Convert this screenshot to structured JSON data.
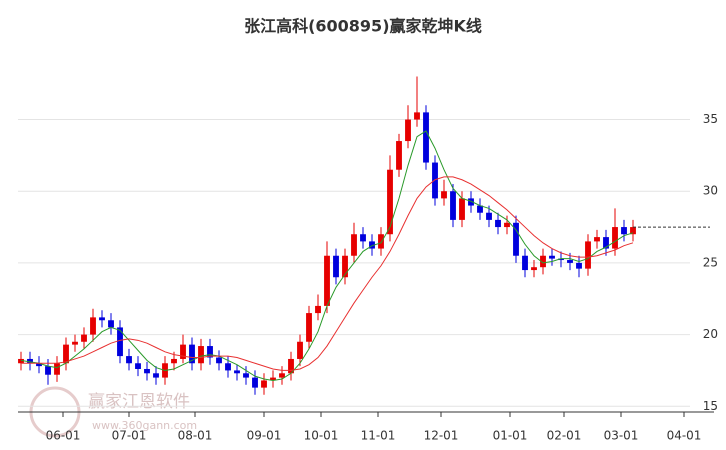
{
  "chart_data": {
    "type": "candlestick",
    "title": "张江高科(600895)赢家乾坤K线",
    "watermark": "赢家江恩软件",
    "watermark_url": "www.360gann.com",
    "x": [
      1,
      4,
      7,
      10,
      13,
      16,
      19,
      22,
      25,
      28,
      31,
      34,
      37,
      40,
      43,
      46,
      49,
      52,
      55,
      58,
      61,
      64,
      67,
      70,
      73,
      76,
      79,
      82,
      85,
      88,
      91,
      94,
      97,
      100,
      103,
      106,
      109,
      112,
      115,
      118,
      121,
      124,
      127,
      130,
      133,
      136,
      139,
      142,
      145,
      148,
      151,
      154,
      157,
      160,
      163,
      166,
      169,
      172,
      175,
      178,
      181,
      184,
      187,
      190,
      193,
      196,
      199,
      202,
      205
    ],
    "open": [
      18.0,
      18.3,
      18.0,
      17.8,
      17.2,
      18.0,
      19.3,
      19.5,
      20.0,
      21.2,
      21.0,
      20.5,
      18.5,
      18.0,
      17.6,
      17.3,
      17.0,
      18.0,
      18.3,
      19.3,
      18.0,
      19.2,
      18.4,
      18.0,
      17.5,
      17.3,
      17.0,
      16.3,
      16.8,
      17.0,
      17.3,
      18.3,
      19.5,
      21.5,
      22.0,
      25.5,
      24.0,
      25.5,
      27.0,
      26.5,
      26.0,
      27.0,
      31.5,
      33.5,
      35.0,
      35.5,
      32.0,
      29.5,
      30.0,
      28.0,
      29.5,
      29.0,
      28.5,
      28.0,
      27.5,
      27.8,
      25.5,
      24.5,
      24.7,
      25.5,
      25.3,
      25.2,
      25.0,
      24.6,
      26.5,
      26.8,
      26.0,
      27.5,
      27.0
    ],
    "high": [
      18.8,
      18.8,
      18.5,
      18.3,
      18.5,
      19.8,
      20.0,
      20.5,
      21.8,
      21.7,
      21.5,
      21.0,
      19.0,
      18.5,
      18.1,
      17.8,
      18.5,
      18.8,
      20.0,
      19.8,
      19.7,
      19.7,
      18.9,
      18.5,
      17.9,
      17.8,
      17.5,
      17.3,
      17.5,
      17.8,
      18.8,
      20.0,
      22.0,
      22.8,
      26.5,
      26.0,
      26.0,
      27.8,
      27.5,
      27.0,
      27.5,
      32.5,
      34.0,
      36.0,
      38.0,
      36.0,
      32.5,
      30.8,
      30.5,
      30.0,
      30.0,
      29.5,
      29.0,
      28.5,
      28.3,
      28.3,
      26.0,
      25.2,
      26.0,
      26.0,
      25.8,
      25.7,
      25.5,
      27.0,
      27.3,
      27.3,
      28.8,
      28.0,
      28.0
    ],
    "low": [
      17.5,
      17.5,
      17.3,
      16.5,
      16.7,
      17.5,
      18.8,
      19.0,
      19.5,
      20.5,
      20.0,
      18.0,
      17.5,
      17.1,
      16.8,
      16.5,
      16.5,
      17.5,
      18.0,
      17.5,
      17.5,
      17.9,
      17.5,
      17.0,
      16.8,
      16.5,
      15.8,
      15.8,
      16.3,
      16.5,
      16.8,
      17.8,
      19.0,
      21.0,
      21.5,
      23.5,
      23.5,
      25.0,
      26.0,
      25.5,
      25.5,
      26.5,
      31.0,
      33.0,
      34.5,
      31.5,
      29.0,
      29.0,
      27.5,
      27.5,
      28.5,
      28.0,
      27.5,
      27.0,
      27.0,
      25.0,
      24.0,
      24.0,
      24.2,
      24.8,
      24.7,
      24.5,
      24.0,
      24.1,
      26.0,
      25.5,
      25.5,
      26.5,
      26.5
    ],
    "close": [
      18.3,
      18.0,
      17.8,
      17.2,
      18.0,
      19.3,
      19.5,
      20.0,
      21.2,
      21.0,
      20.5,
      18.5,
      18.0,
      17.6,
      17.3,
      17.0,
      18.0,
      18.3,
      19.3,
      18.0,
      19.2,
      18.4,
      18.0,
      17.5,
      17.3,
      17.0,
      16.3,
      16.8,
      17.0,
      17.3,
      18.3,
      19.5,
      21.5,
      22.0,
      25.5,
      24.0,
      25.5,
      27.0,
      26.5,
      26.0,
      27.0,
      31.5,
      33.5,
      35.0,
      35.5,
      32.0,
      29.5,
      30.0,
      28.0,
      29.5,
      29.0,
      28.5,
      28.0,
      27.5,
      27.8,
      25.5,
      24.5,
      24.7,
      25.5,
      25.3,
      25.2,
      25.0,
      24.6,
      26.5,
      26.8,
      26.0,
      27.5,
      27.0,
      27.5
    ],
    "up_color": "#e60000",
    "down_color": "#0000dd",
    "lines": [
      {
        "color": "#2a9a2a",
        "values": [
          18.2,
          18.1,
          18.0,
          17.8,
          17.7,
          18.0,
          18.5,
          19.0,
          19.6,
          20.2,
          20.5,
          20.3,
          19.6,
          18.9,
          18.2,
          17.7,
          17.5,
          17.6,
          17.9,
          18.2,
          18.5,
          18.6,
          18.5,
          18.2,
          17.9,
          17.5,
          17.1,
          16.9,
          16.8,
          16.9,
          17.3,
          18.0,
          19.0,
          20.2,
          22.0,
          23.3,
          24.2,
          25.0,
          25.8,
          26.2,
          26.4,
          27.5,
          29.5,
          31.8,
          33.8,
          34.2,
          33.0,
          31.5,
          30.2,
          29.5,
          29.3,
          29.0,
          28.8,
          28.4,
          28.0,
          27.3,
          26.3,
          25.5,
          25.0,
          25.1,
          25.3,
          25.3,
          25.1,
          25.3,
          25.8,
          26.1,
          26.5,
          26.9,
          27.1
        ]
      },
      {
        "color": "#e83030",
        "values": [
          18.0,
          18.0,
          18.0,
          18.0,
          18.0,
          18.1,
          18.3,
          18.5,
          18.8,
          19.1,
          19.4,
          19.6,
          19.7,
          19.6,
          19.4,
          19.1,
          18.8,
          18.6,
          18.5,
          18.4,
          18.4,
          18.5,
          18.5,
          18.5,
          18.4,
          18.2,
          18.0,
          17.8,
          17.6,
          17.5,
          17.5,
          17.6,
          17.9,
          18.4,
          19.2,
          20.2,
          21.2,
          22.2,
          23.1,
          24.0,
          24.8,
          25.8,
          27.0,
          28.3,
          29.5,
          30.3,
          30.8,
          31.0,
          31.0,
          30.8,
          30.5,
          30.1,
          29.7,
          29.2,
          28.7,
          28.1,
          27.5,
          26.9,
          26.4,
          26.0,
          25.7,
          25.5,
          25.4,
          25.4,
          25.5,
          25.7,
          25.9,
          26.2,
          26.4
        ]
      }
    ],
    "xlim": [
      0,
      232
    ],
    "xticks": [
      {
        "value": 15,
        "label": "06-01"
      },
      {
        "value": 37,
        "label": "07-01"
      },
      {
        "value": 59,
        "label": "08-01"
      },
      {
        "value": 82,
        "label": "09-01"
      },
      {
        "value": 101,
        "label": "10-01"
      },
      {
        "value": 120,
        "label": "11-01"
      },
      {
        "value": 141,
        "label": "12-01"
      },
      {
        "value": 164,
        "label": "01-01"
      },
      {
        "value": 182,
        "label": "02-01"
      },
      {
        "value": 201,
        "label": "03-01"
      },
      {
        "value": 222,
        "label": "04-01"
      }
    ],
    "ylim": [
      14.6,
      40.2
    ],
    "yticks": [
      15,
      20,
      25,
      30,
      35
    ],
    "grid": true
  }
}
